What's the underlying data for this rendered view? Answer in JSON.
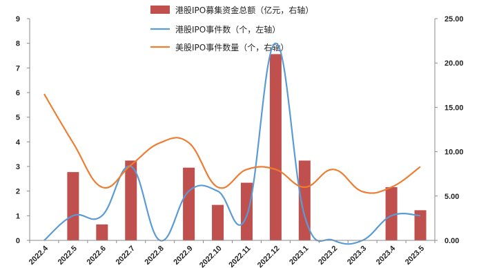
{
  "chart_data": {
    "type": "bar+line",
    "categories": [
      "2022.4",
      "2022.5",
      "2022.6",
      "2022.7",
      "2022.8",
      "2022.9",
      "2022.10",
      "2022.11",
      "2022.12",
      "2023.1",
      "2023.2",
      "2023.3",
      "2023.4",
      "2023.5"
    ],
    "bar_series": {
      "name": "港股IPO募集资金总额（亿元，右轴）",
      "axis": "right",
      "color": "#c0504d",
      "values": [
        null,
        7.7,
        1.8,
        9.0,
        null,
        8.2,
        4.0,
        6.5,
        21.0,
        9.0,
        null,
        null,
        6.0,
        3.4
      ]
    },
    "line_series": [
      {
        "name": "港股IPO事件数（个，左轴）",
        "axis": "left",
        "color": "#5b9bd5",
        "values": [
          0,
          1,
          1,
          3,
          0,
          2,
          2,
          1,
          8,
          1,
          0,
          0,
          1,
          1
        ]
      },
      {
        "name": "美股IPO事件数量（个，右轴）",
        "axis": "right",
        "color": "#ed7d31",
        "values": [
          16.5,
          11,
          6,
          8.5,
          11,
          11,
          6,
          8,
          8,
          6,
          8,
          5.5,
          6,
          8.3
        ]
      }
    ],
    "left_axis": {
      "min": 0,
      "max": 9,
      "ticks": [
        "0",
        "1",
        "2",
        "3",
        "4",
        "5",
        "6",
        "7",
        "8",
        "9"
      ]
    },
    "right_axis": {
      "min": 0,
      "max": 25,
      "ticks": [
        "0.00",
        "5.00",
        "10.00",
        "15.00",
        "20.00",
        "25.00"
      ]
    },
    "legend_position": "top-center",
    "grid": false
  }
}
